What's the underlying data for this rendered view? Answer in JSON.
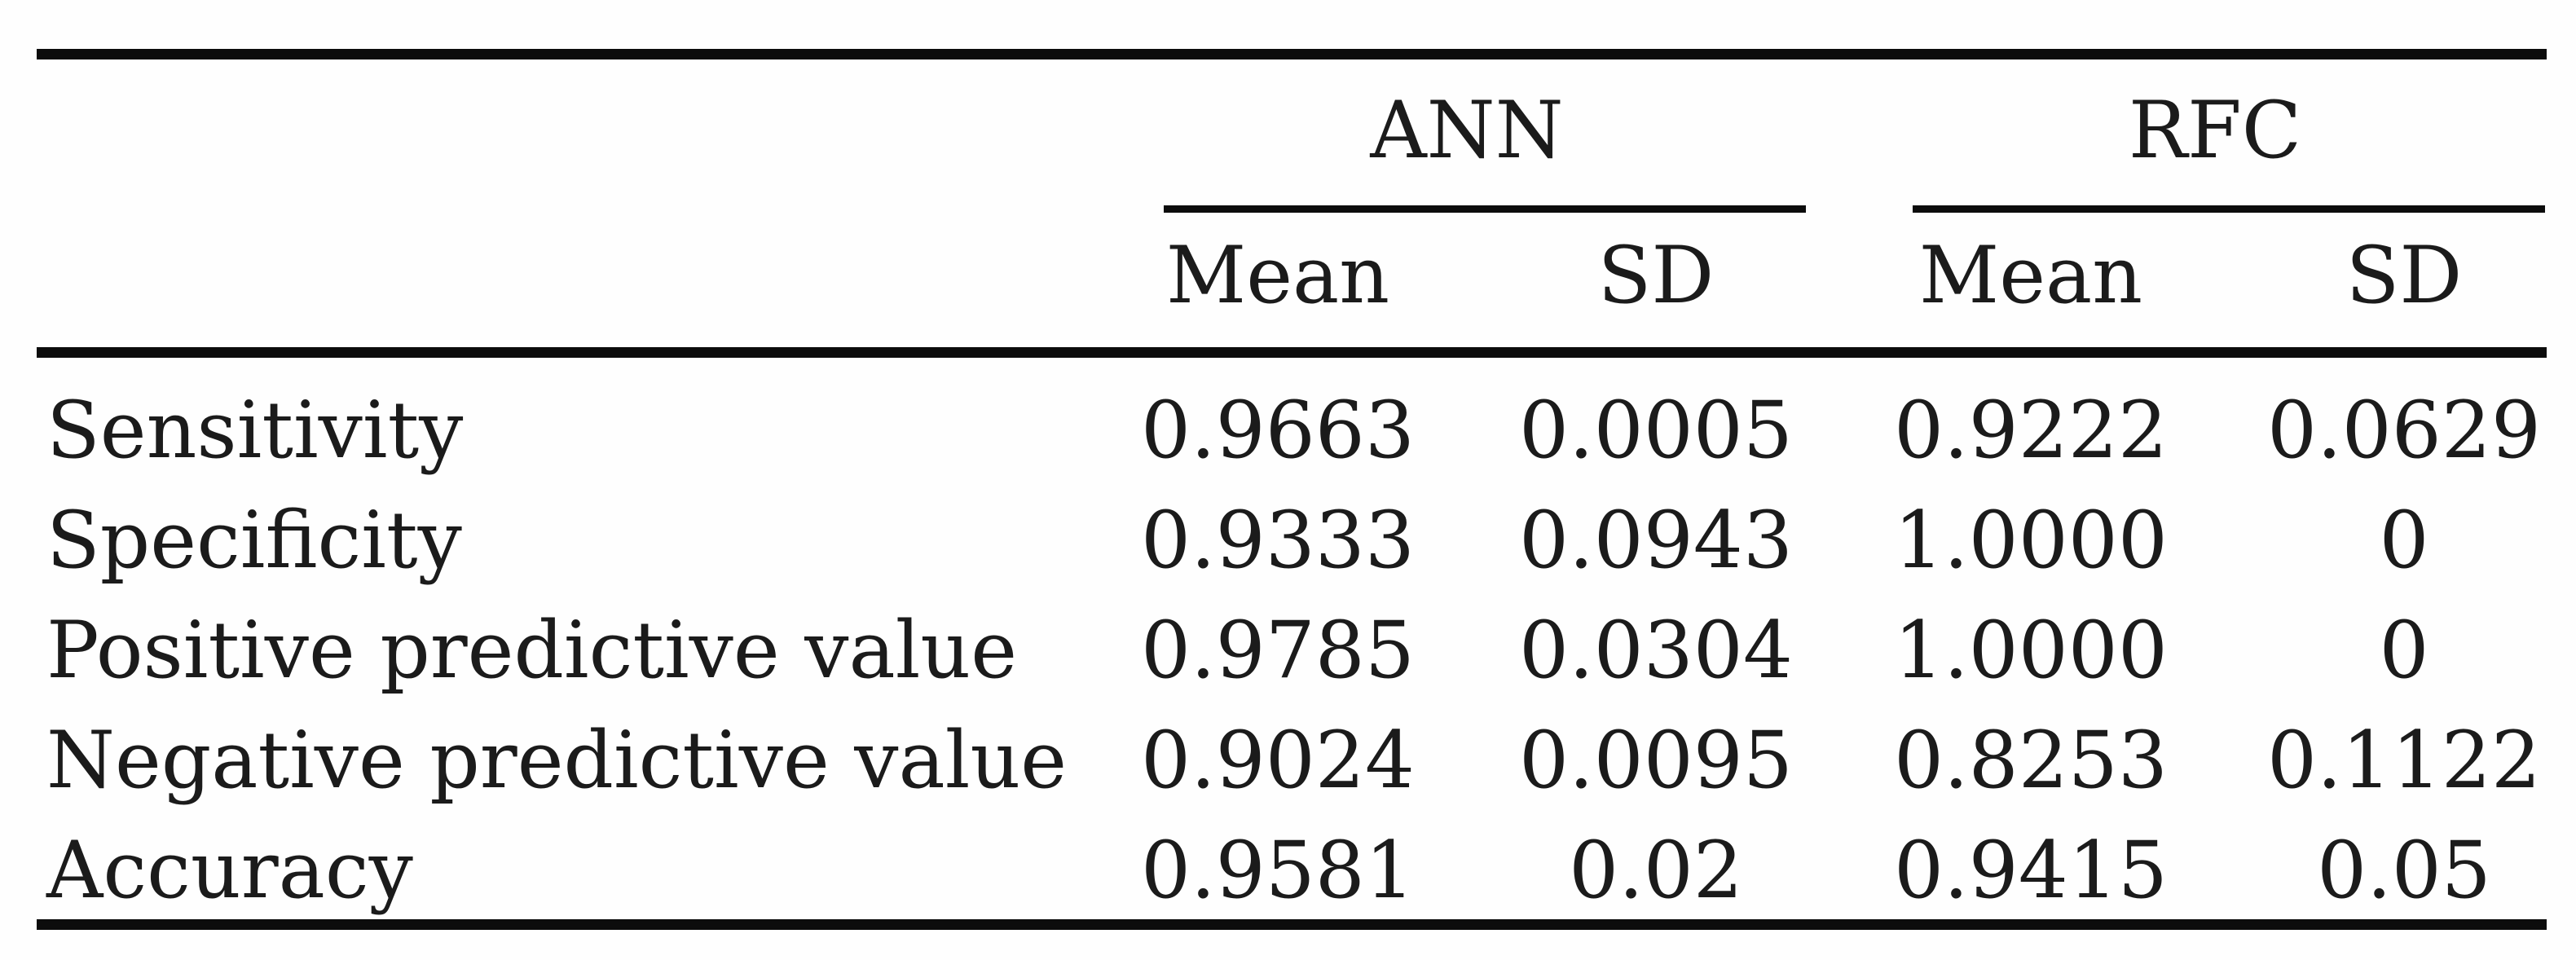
{
  "table": {
    "colors": {
      "text": "#1b1b1b",
      "rule": "#0c0c0c",
      "background": "#fefefe"
    },
    "col_groups": [
      {
        "label": "ANN"
      },
      {
        "label": "RFC"
      }
    ],
    "sub_headers": [
      "Mean",
      "SD",
      "Mean",
      "SD"
    ],
    "rows": [
      {
        "label": "Sensitivity",
        "values": [
          "0.9663",
          "0.0005",
          "0.9222",
          "0.0629"
        ]
      },
      {
        "label": "Specificity",
        "values": [
          "0.9333",
          "0.0943",
          "1.0000",
          "0"
        ]
      },
      {
        "label": "Positive predictive value",
        "values": [
          "0.9785",
          "0.0304",
          "1.0000",
          "0"
        ]
      },
      {
        "label": "Negative predictive value",
        "values": [
          "0.9024",
          "0.0095",
          "0.8253",
          "0.1122"
        ]
      },
      {
        "label": "Accuracy",
        "values": [
          "0.9581",
          "0.02",
          "0.9415",
          "0.05"
        ]
      }
    ]
  }
}
